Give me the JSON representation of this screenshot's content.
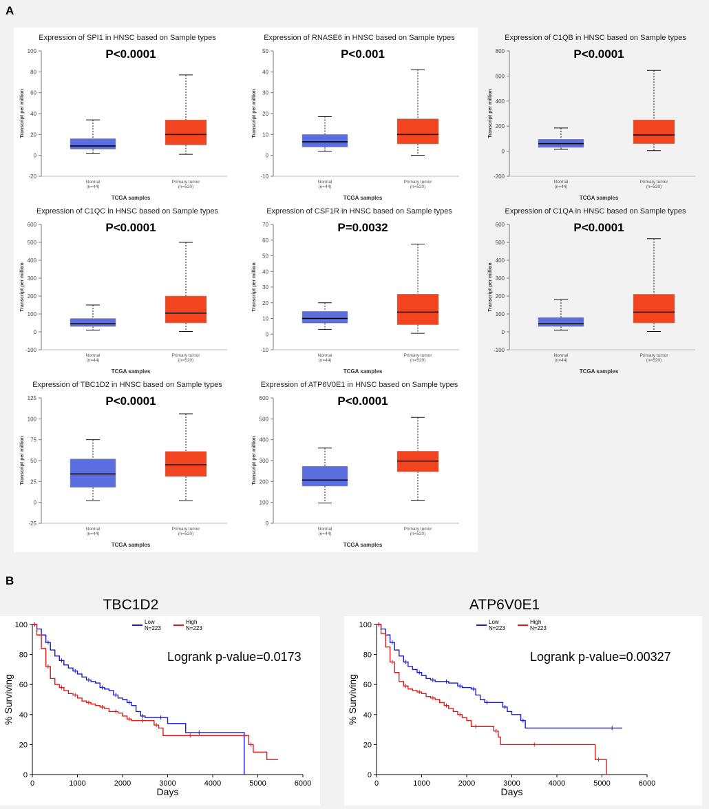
{
  "panels": {
    "a_label": "A",
    "b_label": "B"
  },
  "chart_data": [
    {
      "type": "box",
      "title": "Expression of SPI1 in HNSC based on Sample types",
      "pvalue": "P<0.0001",
      "ylabel": "Transcript per million",
      "xlabel": "TCGA samples",
      "ylim": [
        -20,
        100
      ],
      "yticks": [
        -20,
        0,
        20,
        40,
        60,
        80,
        100
      ],
      "groups": [
        {
          "name": "Normal",
          "n": "(n=44)",
          "min": 2,
          "q1": 6,
          "median": 9,
          "q3": 16,
          "max": 34,
          "color": "#5a6ee0"
        },
        {
          "name": "Primary tumor",
          "n": "(n=520)",
          "min": 1,
          "q1": 10,
          "median": 20,
          "q3": 34,
          "max": 77,
          "color": "#f2441f"
        }
      ]
    },
    {
      "type": "box",
      "title": "Expression of RNASE6 in HNSC based on Sample types",
      "pvalue": "P<0.001",
      "ylabel": "Transcript per million",
      "xlabel": "TCGA samples",
      "ylim": [
        -10,
        50
      ],
      "yticks": [
        -10,
        0,
        10,
        20,
        30,
        40,
        50
      ],
      "groups": [
        {
          "name": "Normal",
          "n": "(n=44)",
          "min": 2,
          "q1": 4,
          "median": 6.5,
          "q3": 10,
          "max": 18.5,
          "color": "#5a6ee0"
        },
        {
          "name": "Primary tumor",
          "n": "(n=520)",
          "min": 0,
          "q1": 5.5,
          "median": 10,
          "q3": 17.5,
          "max": 41,
          "color": "#f2441f"
        }
      ]
    },
    {
      "type": "box",
      "title": "Expression of C1QB in HNSC based on Sample types",
      "pvalue": "P<0.0001",
      "ylabel": "Transcript per million",
      "xlabel": "TCGA samples",
      "ylim": [
        -200,
        800
      ],
      "yticks": [
        -200,
        0,
        200,
        400,
        600,
        800
      ],
      "groups": [
        {
          "name": "Normal",
          "n": "(n=44)",
          "min": 15,
          "q1": 30,
          "median": 60,
          "q3": 95,
          "max": 185,
          "color": "#5a6ee0"
        },
        {
          "name": "Primary tumor",
          "n": "(n=520)",
          "min": 5,
          "q1": 60,
          "median": 130,
          "q3": 250,
          "max": 645,
          "color": "#f2441f"
        }
      ]
    },
    {
      "type": "box",
      "title": "Expression of C1QC in HNSC based on Sample types",
      "pvalue": "P<0.0001",
      "ylabel": "Transcript per million",
      "xlabel": "TCGA samples",
      "ylim": [
        -100,
        600
      ],
      "yticks": [
        -100,
        0,
        100,
        200,
        300,
        400,
        500,
        600
      ],
      "groups": [
        {
          "name": "Normal",
          "n": "(n=44)",
          "min": 10,
          "q1": 30,
          "median": 45,
          "q3": 75,
          "max": 150,
          "color": "#5a6ee0"
        },
        {
          "name": "Primary tumor",
          "n": "(n=520)",
          "min": 2,
          "q1": 50,
          "median": 105,
          "q3": 200,
          "max": 500,
          "color": "#f2441f"
        }
      ]
    },
    {
      "type": "box",
      "title": "Expression of CSF1R in HNSC based on Sample types",
      "pvalue": "P=0.0032",
      "ylabel": "Transcript per million",
      "xlabel": "TCGA samples",
      "ylim": [
        -10,
        70
      ],
      "yticks": [
        -10,
        0,
        10,
        20,
        30,
        40,
        50,
        60,
        70
      ],
      "groups": [
        {
          "name": "Normal",
          "n": "(n=44)",
          "min": 3,
          "q1": 7,
          "median": 10,
          "q3": 14.5,
          "max": 20,
          "color": "#5a6ee0"
        },
        {
          "name": "Primary tumor",
          "n": "(n=520)",
          "min": 0.5,
          "q1": 6,
          "median": 14,
          "q3": 25.5,
          "max": 57.5,
          "color": "#f2441f"
        }
      ]
    },
    {
      "type": "box",
      "title": "Expression of C1QA in HNSC based on Sample types",
      "pvalue": "P<0.0001",
      "ylabel": "Transcript per million",
      "xlabel": "TCGA samples",
      "ylim": [
        -100,
        600
      ],
      "yticks": [
        -100,
        0,
        100,
        200,
        300,
        400,
        500,
        600
      ],
      "groups": [
        {
          "name": "Normal",
          "n": "(n=44)",
          "min": 10,
          "q1": 30,
          "median": 45,
          "q3": 80,
          "max": 180,
          "color": "#5a6ee0"
        },
        {
          "name": "Primary tumor",
          "n": "(n=520)",
          "min": 2,
          "q1": 50,
          "median": 110,
          "q3": 210,
          "max": 520,
          "color": "#f2441f"
        }
      ]
    },
    {
      "type": "box",
      "title": "Expression of TBC1D2 in HNSC based on Sample types",
      "pvalue": "P<0.0001",
      "ylabel": "Transcript per million",
      "xlabel": "TCGA samples",
      "ylim": [
        -25,
        125
      ],
      "yticks": [
        -25,
        0,
        25,
        50,
        75,
        100,
        125
      ],
      "groups": [
        {
          "name": "Normal",
          "n": "(n=44)",
          "min": 2,
          "q1": 18,
          "median": 34,
          "q3": 52,
          "max": 75,
          "color": "#5a6ee0"
        },
        {
          "name": "Primary tumor",
          "n": "(n=520)",
          "min": 2,
          "q1": 31,
          "median": 45,
          "q3": 61,
          "max": 106,
          "color": "#f2441f"
        }
      ]
    },
    {
      "type": "box",
      "title": "Expression of ATP6V0E1 in HNSC based on Sample types",
      "pvalue": "P<0.0001",
      "ylabel": "Transcript per million",
      "xlabel": "TCGA samples",
      "ylim": [
        0,
        600
      ],
      "yticks": [
        0,
        100,
        200,
        300,
        400,
        500,
        600
      ],
      "groups": [
        {
          "name": "Normal",
          "n": "(n=44)",
          "min": 97,
          "q1": 178,
          "median": 207,
          "q3": 273,
          "max": 360,
          "color": "#5a6ee0"
        },
        {
          "name": "Primary tumor",
          "n": "(n=520)",
          "min": 110,
          "q1": 247,
          "median": 298,
          "q3": 345,
          "max": 507,
          "color": "#f2441f"
        }
      ]
    },
    {
      "type": "line",
      "title": "TBC1D2",
      "pvalue": "Logrank p-value=0.0173",
      "xlabel": "Days",
      "ylabel": "% Surviving",
      "xlim": [
        0,
        6000
      ],
      "ylim": [
        0,
        100
      ],
      "xticks": [
        0,
        1000,
        2000,
        3000,
        4000,
        5000,
        6000
      ],
      "yticks": [
        0,
        20,
        40,
        60,
        80,
        100
      ],
      "series": [
        {
          "name": "Low",
          "n": "N=223",
          "color": "#1a1adb",
          "x": [
            0,
            100,
            200,
            300,
            400,
            500,
            600,
            700,
            800,
            900,
            1000,
            1100,
            1200,
            1300,
            1400,
            1500,
            1600,
            1700,
            1800,
            1900,
            2000,
            2100,
            2200,
            2300,
            2400,
            2500,
            2600,
            2700,
            3000,
            3300,
            3400,
            4000,
            4650,
            4700
          ],
          "y": [
            100,
            97,
            93,
            88,
            83,
            79,
            76,
            73,
            71,
            69,
            67,
            65,
            63,
            62,
            61,
            58,
            57,
            56,
            53,
            51,
            50,
            48,
            46,
            42,
            39,
            38,
            38,
            38,
            34,
            34,
            28,
            28,
            28,
            0
          ]
        },
        {
          "name": "High",
          "n": "N=223",
          "color": "#e01a1a",
          "x": [
            0,
            100,
            200,
            300,
            400,
            500,
            600,
            700,
            800,
            900,
            1000,
            1100,
            1200,
            1300,
            1400,
            1500,
            1600,
            1700,
            1800,
            1900,
            2000,
            2100,
            2200,
            2300,
            2400,
            2500,
            2600,
            2700,
            2800,
            2900,
            3000,
            4000,
            4650,
            4800,
            4900,
            5200,
            5450
          ],
          "y": [
            100,
            93,
            84,
            72,
            64,
            60,
            58,
            56,
            54,
            53,
            51,
            49,
            48,
            47,
            46,
            45,
            44,
            42,
            42,
            41,
            39,
            37,
            36,
            36,
            36,
            36,
            36,
            33,
            31,
            26,
            26,
            26,
            26,
            20,
            15,
            10,
            10
          ]
        }
      ]
    },
    {
      "type": "line",
      "title": "ATP6V0E1",
      "pvalue": "Logrank p-value=0.00327",
      "xlabel": "Days",
      "ylabel": "% Surviving",
      "xlim": [
        0,
        6000
      ],
      "ylim": [
        0,
        100
      ],
      "xticks": [
        0,
        1000,
        2000,
        3000,
        4000,
        5000,
        6000
      ],
      "yticks": [
        0,
        20,
        40,
        60,
        80,
        100
      ],
      "series": [
        {
          "name": "Low",
          "n": "N=223",
          "color": "#1a1adb",
          "x": [
            0,
            100,
            200,
            300,
            400,
            500,
            600,
            700,
            800,
            900,
            1000,
            1100,
            1200,
            1300,
            1400,
            1500,
            1600,
            1700,
            1800,
            1900,
            2000,
            2100,
            2200,
            2300,
            2400,
            2500,
            2700,
            2800,
            2900,
            3000,
            3200,
            3300,
            4000,
            5000,
            5450
          ],
          "y": [
            100,
            97,
            93,
            88,
            83,
            79,
            75,
            72,
            70,
            68,
            66,
            64,
            63,
            62,
            62,
            62,
            61,
            61,
            59,
            58,
            58,
            57,
            53,
            50,
            48,
            48,
            48,
            45,
            42,
            40,
            36,
            31,
            31,
            31,
            31
          ]
        },
        {
          "name": "High",
          "n": "N=223",
          "color": "#e01a1a",
          "x": [
            0,
            100,
            200,
            300,
            400,
            500,
            600,
            700,
            800,
            900,
            1000,
            1100,
            1200,
            1300,
            1400,
            1500,
            1600,
            1700,
            1800,
            1900,
            2000,
            2100,
            2300,
            2500,
            2600,
            2700,
            2750,
            3000,
            4000,
            4800,
            4850,
            5000,
            5100
          ],
          "y": [
            100,
            94,
            85,
            75,
            68,
            62,
            59,
            57,
            56,
            55,
            54,
            52,
            51,
            50,
            48,
            46,
            44,
            42,
            40,
            38,
            36,
            32,
            32,
            32,
            29,
            25,
            20,
            20,
            20,
            20,
            10,
            10,
            0
          ]
        }
      ]
    }
  ]
}
